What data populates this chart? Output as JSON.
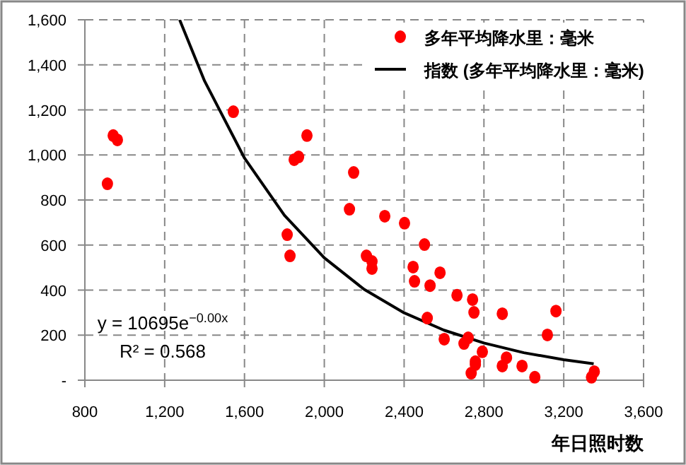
{
  "chart_data": {
    "type": "scatter",
    "xlabel": "年日照时数",
    "xlim": [
      800,
      3600
    ],
    "xticks": [
      {
        "value": 800,
        "label": "800"
      },
      {
        "value": 1200,
        "label": "1,200"
      },
      {
        "value": 1600,
        "label": "1,600"
      },
      {
        "value": 2000,
        "label": "2,000"
      },
      {
        "value": 2400,
        "label": "2,400"
      },
      {
        "value": 2800,
        "label": "2,800"
      },
      {
        "value": 3200,
        "label": "3,200"
      },
      {
        "value": 3600,
        "label": "3,600"
      }
    ],
    "ylim": [
      0,
      1600
    ],
    "yticks": [
      {
        "value": 0,
        "label": "-"
      },
      {
        "value": 200,
        "label": "200"
      },
      {
        "value": 400,
        "label": "400"
      },
      {
        "value": 600,
        "label": "600"
      },
      {
        "value": 800,
        "label": "800"
      },
      {
        "value": 1000,
        "label": "1,000"
      },
      {
        "value": 1200,
        "label": "1,200"
      },
      {
        "value": 1400,
        "label": "1,400"
      },
      {
        "value": 1600,
        "label": "1,600"
      }
    ],
    "grid": true,
    "legend": "top right",
    "marker": "circle",
    "series": [
      {
        "name": "多年平均降水里：毫米",
        "color": "#ff0000",
        "x": [
          913,
          942,
          963,
          1544,
          1849,
          1871,
          1913,
          2126,
          2147,
          1814,
          1828,
          2303,
          2402,
          2502,
          2211,
          2239,
          2239,
          2445,
          2452,
          2580,
          2530,
          2665,
          2743,
          2750,
          2892,
          3161,
          3118,
          2516,
          2601,
          2700,
          2721,
          2792,
          2757,
          2757,
          2736,
          2913,
          2892,
          2991,
          3055,
          3353,
          3339
        ],
        "values": [
          872,
          1086,
          1067,
          1192,
          979,
          991,
          1086,
          759,
          922,
          646,
          552,
          728,
          697,
          602,
          552,
          527,
          496,
          502,
          439,
          477,
          420,
          377,
          358,
          301,
          295,
          307,
          201,
          276,
          182,
          163,
          188,
          126,
          82,
          69,
          31,
          100,
          63,
          63,
          13,
          38,
          13
        ]
      },
      {
        "name": "指数 (多年平均降水里：毫米)",
        "type": "line",
        "color": "#000000",
        "line_style": "solid",
        "marker": "none",
        "x": [
          1275,
          1400,
          1600,
          1800,
          2000,
          2200,
          2400,
          2600,
          2800,
          3000,
          3200,
          3350
        ],
        "values": [
          1600,
          1328,
          986,
          732,
          543,
          403,
          299,
          222,
          165,
          122,
          91,
          73
        ]
      }
    ],
    "annotations": [
      "y = 10695e$^{−0.00x}$",
      "R² = 0.568"
    ]
  }
}
